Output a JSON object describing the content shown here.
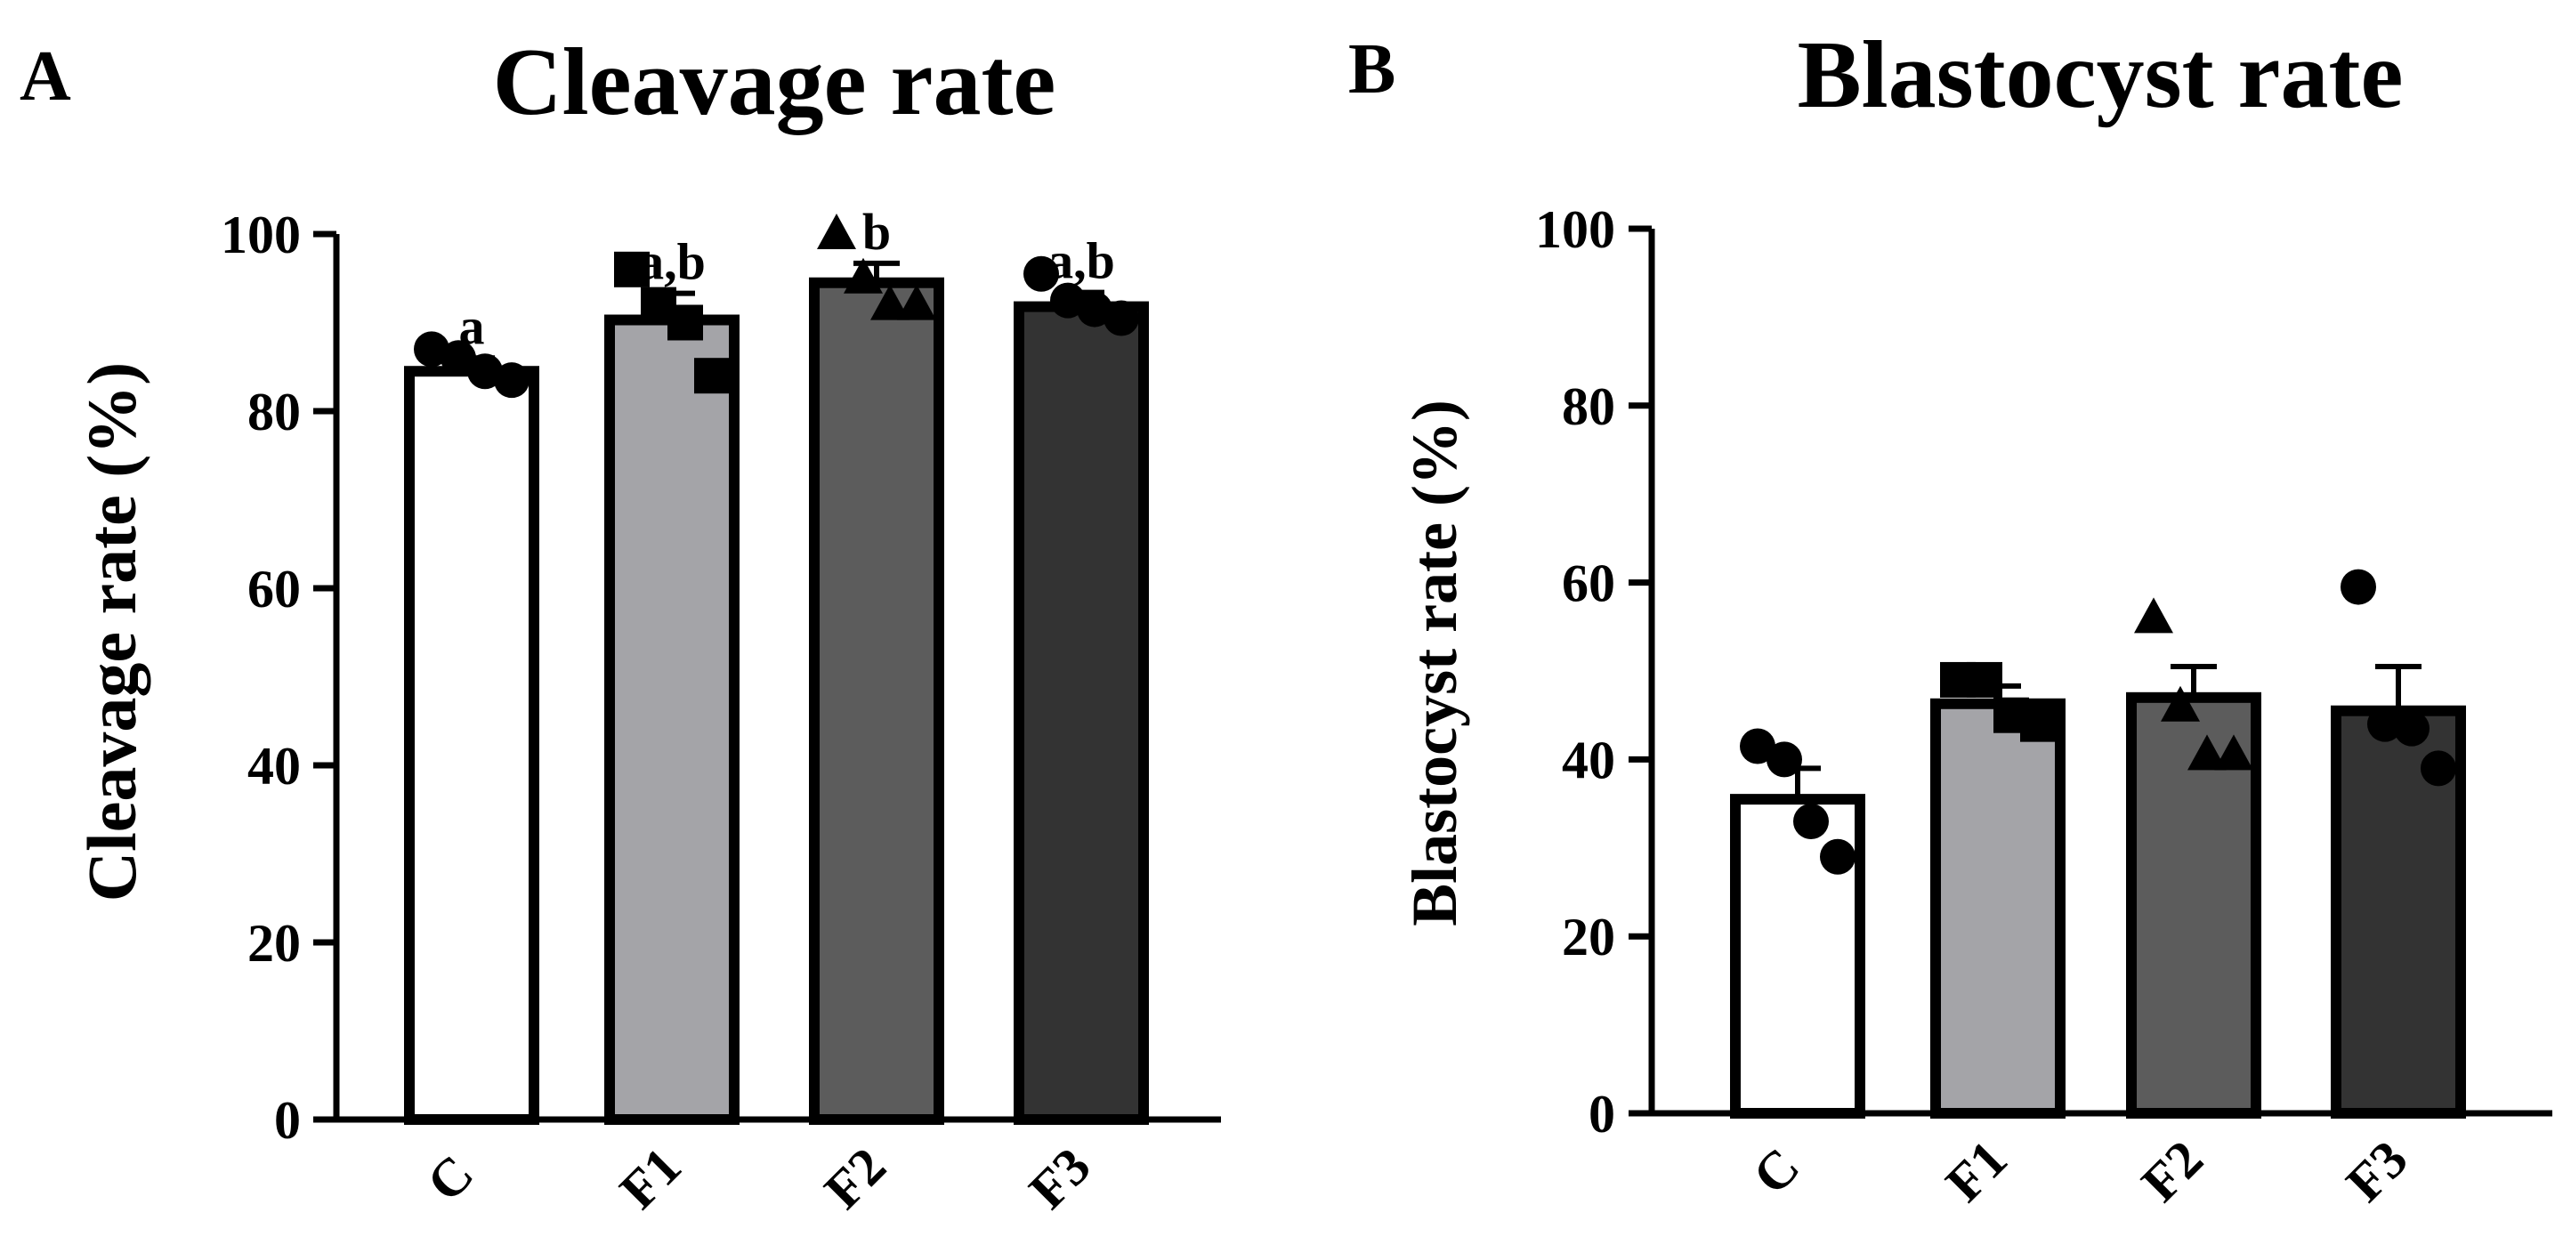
{
  "chart_data": [
    {
      "panel_label": "A",
      "type": "bar",
      "title": "Cleavage rate",
      "xlabel": "",
      "ylabel": "Cleavage rate (%)",
      "ylim": [
        0,
        100
      ],
      "yticks": [
        "0",
        "20",
        "40",
        "60",
        "80",
        "100"
      ],
      "categories": [
        "C",
        "F1",
        "F2",
        "F3"
      ],
      "values": [
        84.5,
        90.3,
        94.5,
        91.8
      ],
      "sem": [
        1.5,
        3.0,
        2.2,
        1.6
      ],
      "sig_letters": [
        "a",
        "a,b",
        "b",
        "a,b"
      ],
      "points": [
        {
          "marker": "circle",
          "values": [
            87.0,
            86.0,
            84.5,
            83.5
          ]
        },
        {
          "marker": "square",
          "values": [
            96.0,
            92.0,
            90.0,
            84.0
          ]
        },
        {
          "marker": "triangle",
          "values": [
            100.0,
            95.0,
            92.0,
            92.0
          ]
        },
        {
          "marker": "circle",
          "values": [
            95.5,
            92.5,
            91.5,
            90.5
          ]
        }
      ],
      "colors": [
        "#ffffff",
        "#a4a4a8",
        "#5c5c5c",
        "#333333"
      ]
    },
    {
      "panel_label": "B",
      "type": "bar",
      "title": "Blastocyst rate",
      "xlabel": "",
      "ylabel": "Blastocyst rate (%)",
      "ylim": [
        0,
        100
      ],
      "yticks": [
        "0",
        "20",
        "40",
        "60",
        "80",
        "100"
      ],
      "categories": [
        "C",
        "F1",
        "F2",
        "F3"
      ],
      "values": [
        35.5,
        46.3,
        47.0,
        45.5
      ],
      "sem": [
        3.5,
        2.0,
        3.5,
        5.0
      ],
      "sig_letters": [],
      "points": [
        {
          "marker": "circle",
          "values": [
            41.5,
            40.0,
            33.0,
            29.0
          ]
        },
        {
          "marker": "square",
          "values": [
            49.0,
            49.0,
            45.0,
            44.0
          ]
        },
        {
          "marker": "triangle",
          "values": [
            56.0,
            46.0,
            40.5,
            40.5
          ]
        },
        {
          "marker": "circle",
          "values": [
            59.5,
            44.0,
            43.5,
            39.0
          ]
        }
      ],
      "colors": [
        "#ffffff",
        "#a4a4a8",
        "#5c5c5c",
        "#333333"
      ]
    }
  ]
}
